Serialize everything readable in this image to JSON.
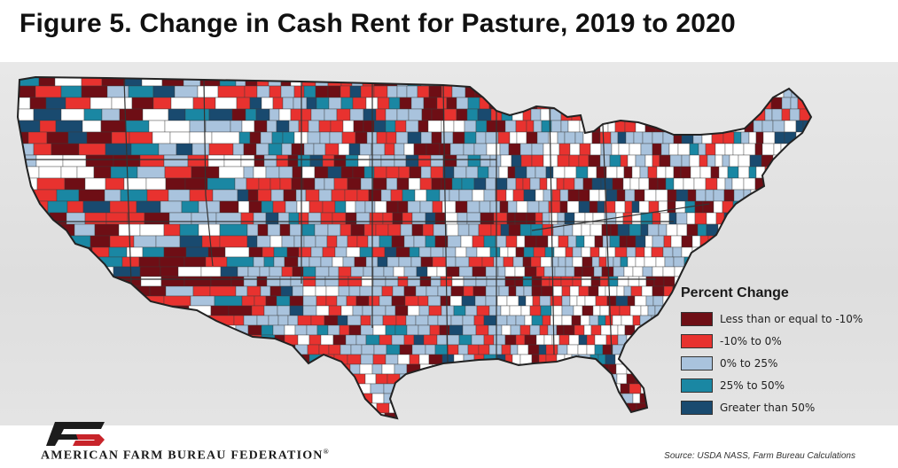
{
  "title": "Figure 5. Change in Cash Rent for Pasture, 2019 to 2020",
  "legend": {
    "title": "Percent Change",
    "items": [
      {
        "label": "Less than or equal to -10%",
        "color": "#6e0e15"
      },
      {
        "label": "-10% to 0%",
        "color": "#e8322f"
      },
      {
        "label": "0% to 25%",
        "color": "#a9c3dd"
      },
      {
        "label": "25% to 50%",
        "color": "#1a87a3"
      },
      {
        "label": "Greater than 50%",
        "color": "#194a6f"
      }
    ]
  },
  "no_data_color": "#ffffff",
  "boundary_color": "#222222",
  "map_icons": [
    "us-counties-choropleth"
  ],
  "footer": {
    "org_name": "AMERICAN FARM BUREAU FEDERATION",
    "registered": "®",
    "source": "Source: USDA NASS, Farm Bureau Calculations"
  }
}
